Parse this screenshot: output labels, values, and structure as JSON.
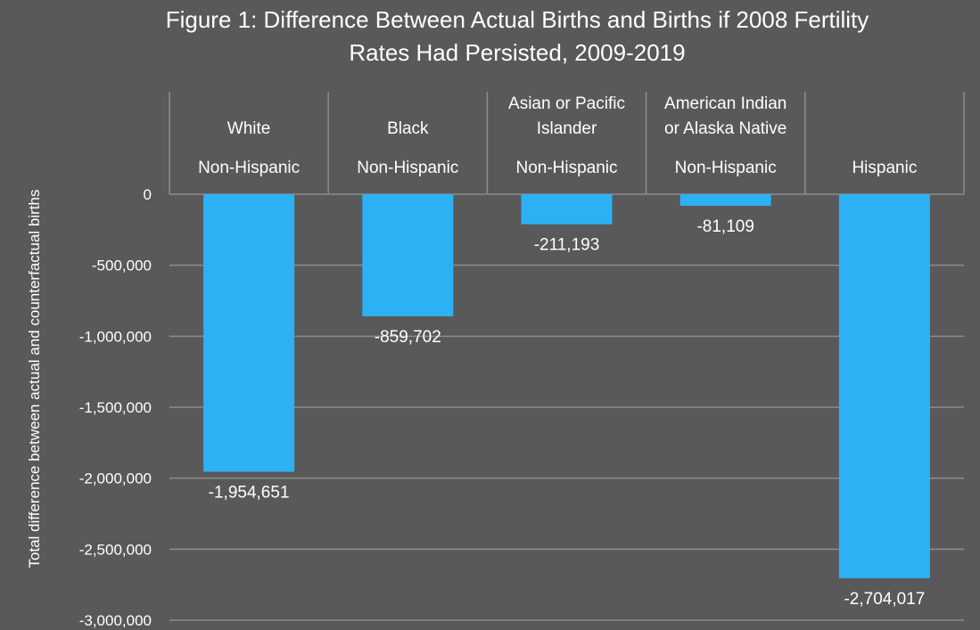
{
  "chart_data": {
    "type": "bar",
    "title_lines": [
      "Figure 1: Difference Between Actual Births and Births if 2008 Fertility",
      "Rates Had Persisted, 2009-2019"
    ],
    "ylabel": "Total difference between actual and counterfactual births",
    "xlabel": "",
    "categories": [
      [
        "White",
        "Non-Hispanic"
      ],
      [
        "Black",
        "Non-Hispanic"
      ],
      [
        "Asian or Pacific",
        "Islander",
        "Non-Hispanic"
      ],
      [
        "American Indian",
        "or Alaska Native",
        "Non-Hispanic"
      ],
      [
        "Hispanic"
      ]
    ],
    "values": [
      -1954651,
      -859702,
      -211193,
      -81109,
      -2704017
    ],
    "data_labels": [
      "-1,954,651",
      "-859,702",
      "-211,193",
      "-81,109",
      "-2,704,017"
    ],
    "yticks": [
      0,
      -500000,
      -1000000,
      -1500000,
      -2000000,
      -2500000,
      -3000000
    ],
    "ytick_labels": [
      "0",
      "-500,000",
      "-1,000,000",
      "-1,500,000",
      "-2,000,000",
      "-2,500,000",
      "-3,000,000"
    ],
    "ylim": [
      -3000000,
      0
    ],
    "grid": true,
    "legend": "none",
    "bar_color": "#2db1f5",
    "background_color": "#595959",
    "grid_color": "#8c8c8c"
  }
}
